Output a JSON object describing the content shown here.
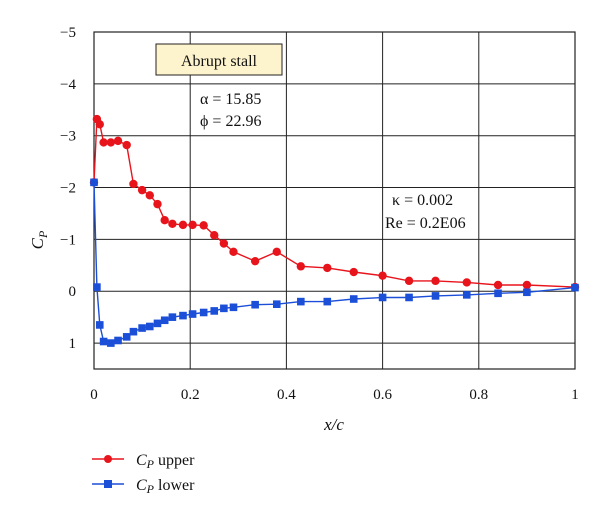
{
  "chart_data": {
    "type": "line",
    "xlabel": "x/c",
    "ylabel": "C_P",
    "xlim": [
      0,
      1
    ],
    "ylim": [
      -5,
      1.5
    ],
    "y_inverted": true,
    "grid": true,
    "x_ticks": [
      "0",
      "0.2",
      "0.4",
      "0.6",
      "0.8",
      "1"
    ],
    "y_ticks": [
      "−5",
      "−4",
      "−3",
      "−2",
      "−1",
      "0",
      "1"
    ],
    "x_tick_values": [
      0,
      0.2,
      0.4,
      0.6,
      0.8,
      1
    ],
    "y_tick_values": [
      -5,
      -4,
      -3,
      -2,
      -1,
      0,
      1
    ],
    "legend_position": "bottom-left",
    "annotations": {
      "box_label": "Abrupt stall",
      "alpha": "α = 15.85",
      "phi": "ϕ = 22.96",
      "kappa": "κ = 0.002",
      "reynolds": "Re = 0.2E06"
    },
    "series": [
      {
        "name": "C_P upper",
        "color": "#e8141c",
        "marker": "circle",
        "x": [
          0,
          0.006,
          0.012,
          0.02,
          0.035,
          0.05,
          0.068,
          0.082,
          0.1,
          0.116,
          0.132,
          0.147,
          0.163,
          0.185,
          0.205,
          0.228,
          0.25,
          0.27,
          0.29,
          0.335,
          0.38,
          0.43,
          0.485,
          0.54,
          0.6,
          0.655,
          0.71,
          0.775,
          0.84,
          0.9,
          1.0
        ],
        "y": [
          -2.1,
          -3.32,
          -3.22,
          -2.87,
          -2.87,
          -2.9,
          -2.82,
          -2.07,
          -1.95,
          -1.85,
          -1.68,
          -1.37,
          -1.3,
          -1.28,
          -1.28,
          -1.27,
          -1.08,
          -0.92,
          -0.76,
          -0.58,
          -0.76,
          -0.48,
          -0.45,
          -0.37,
          -0.3,
          -0.2,
          -0.2,
          -0.17,
          -0.12,
          -0.12,
          -0.08
        ]
      },
      {
        "name": "C_P lower",
        "color": "#1c4fd8",
        "marker": "square",
        "x": [
          0,
          0.006,
          0.012,
          0.02,
          0.035,
          0.05,
          0.068,
          0.082,
          0.1,
          0.116,
          0.132,
          0.147,
          0.163,
          0.185,
          0.205,
          0.228,
          0.25,
          0.27,
          0.29,
          0.335,
          0.38,
          0.43,
          0.485,
          0.54,
          0.6,
          0.655,
          0.71,
          0.775,
          0.84,
          0.9,
          1.0
        ],
        "y": [
          -2.1,
          -0.08,
          0.65,
          0.97,
          1.0,
          0.95,
          0.88,
          0.78,
          0.71,
          0.68,
          0.62,
          0.56,
          0.5,
          0.47,
          0.44,
          0.41,
          0.38,
          0.33,
          0.31,
          0.26,
          0.25,
          0.2,
          0.2,
          0.15,
          0.12,
          0.12,
          0.09,
          0.07,
          0.04,
          0.02,
          -0.07
        ]
      }
    ]
  }
}
